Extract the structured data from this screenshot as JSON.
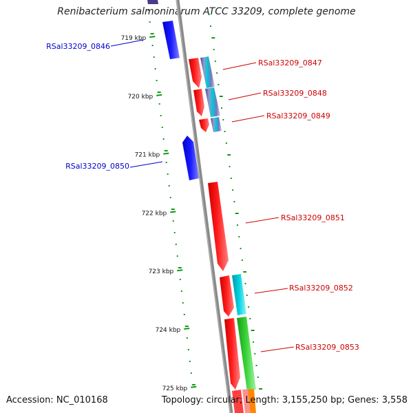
{
  "title": "Renibacterium salmoninarum ATCC 33209, complete genome",
  "accession": "Accession: NC_010168",
  "summary": "Topology: circular; Length: 3,155,250 bp; Genes: 3,558",
  "axis_ticks": [
    "719 kbp",
    "720 kbp",
    "721 kbp",
    "722 kbp",
    "723 kbp",
    "724 kbp",
    "725 kbp"
  ],
  "genes": [
    {
      "id": "RSal33209_0846",
      "strand": "reverse"
    },
    {
      "id": "RSal33209_0847",
      "strand": "forward"
    },
    {
      "id": "RSal33209_0848",
      "strand": "forward"
    },
    {
      "id": "RSal33209_0849",
      "strand": "forward"
    },
    {
      "id": "RSal33209_0850",
      "strand": "reverse"
    },
    {
      "id": "RSal33209_0851",
      "strand": "forward"
    },
    {
      "id": "RSal33209_0852",
      "strand": "forward"
    },
    {
      "id": "RSal33209_0853",
      "strand": "forward"
    }
  ],
  "colors": {
    "forward": "#ff0000",
    "reverse": "#0000ff",
    "forward_label": "#cc0000",
    "reverse_label": "#0000cc",
    "tick": "#119911",
    "backbone": "#8a8a8a",
    "cyan_feature": "#00c8d8",
    "green_feature": "#33cc33"
  }
}
